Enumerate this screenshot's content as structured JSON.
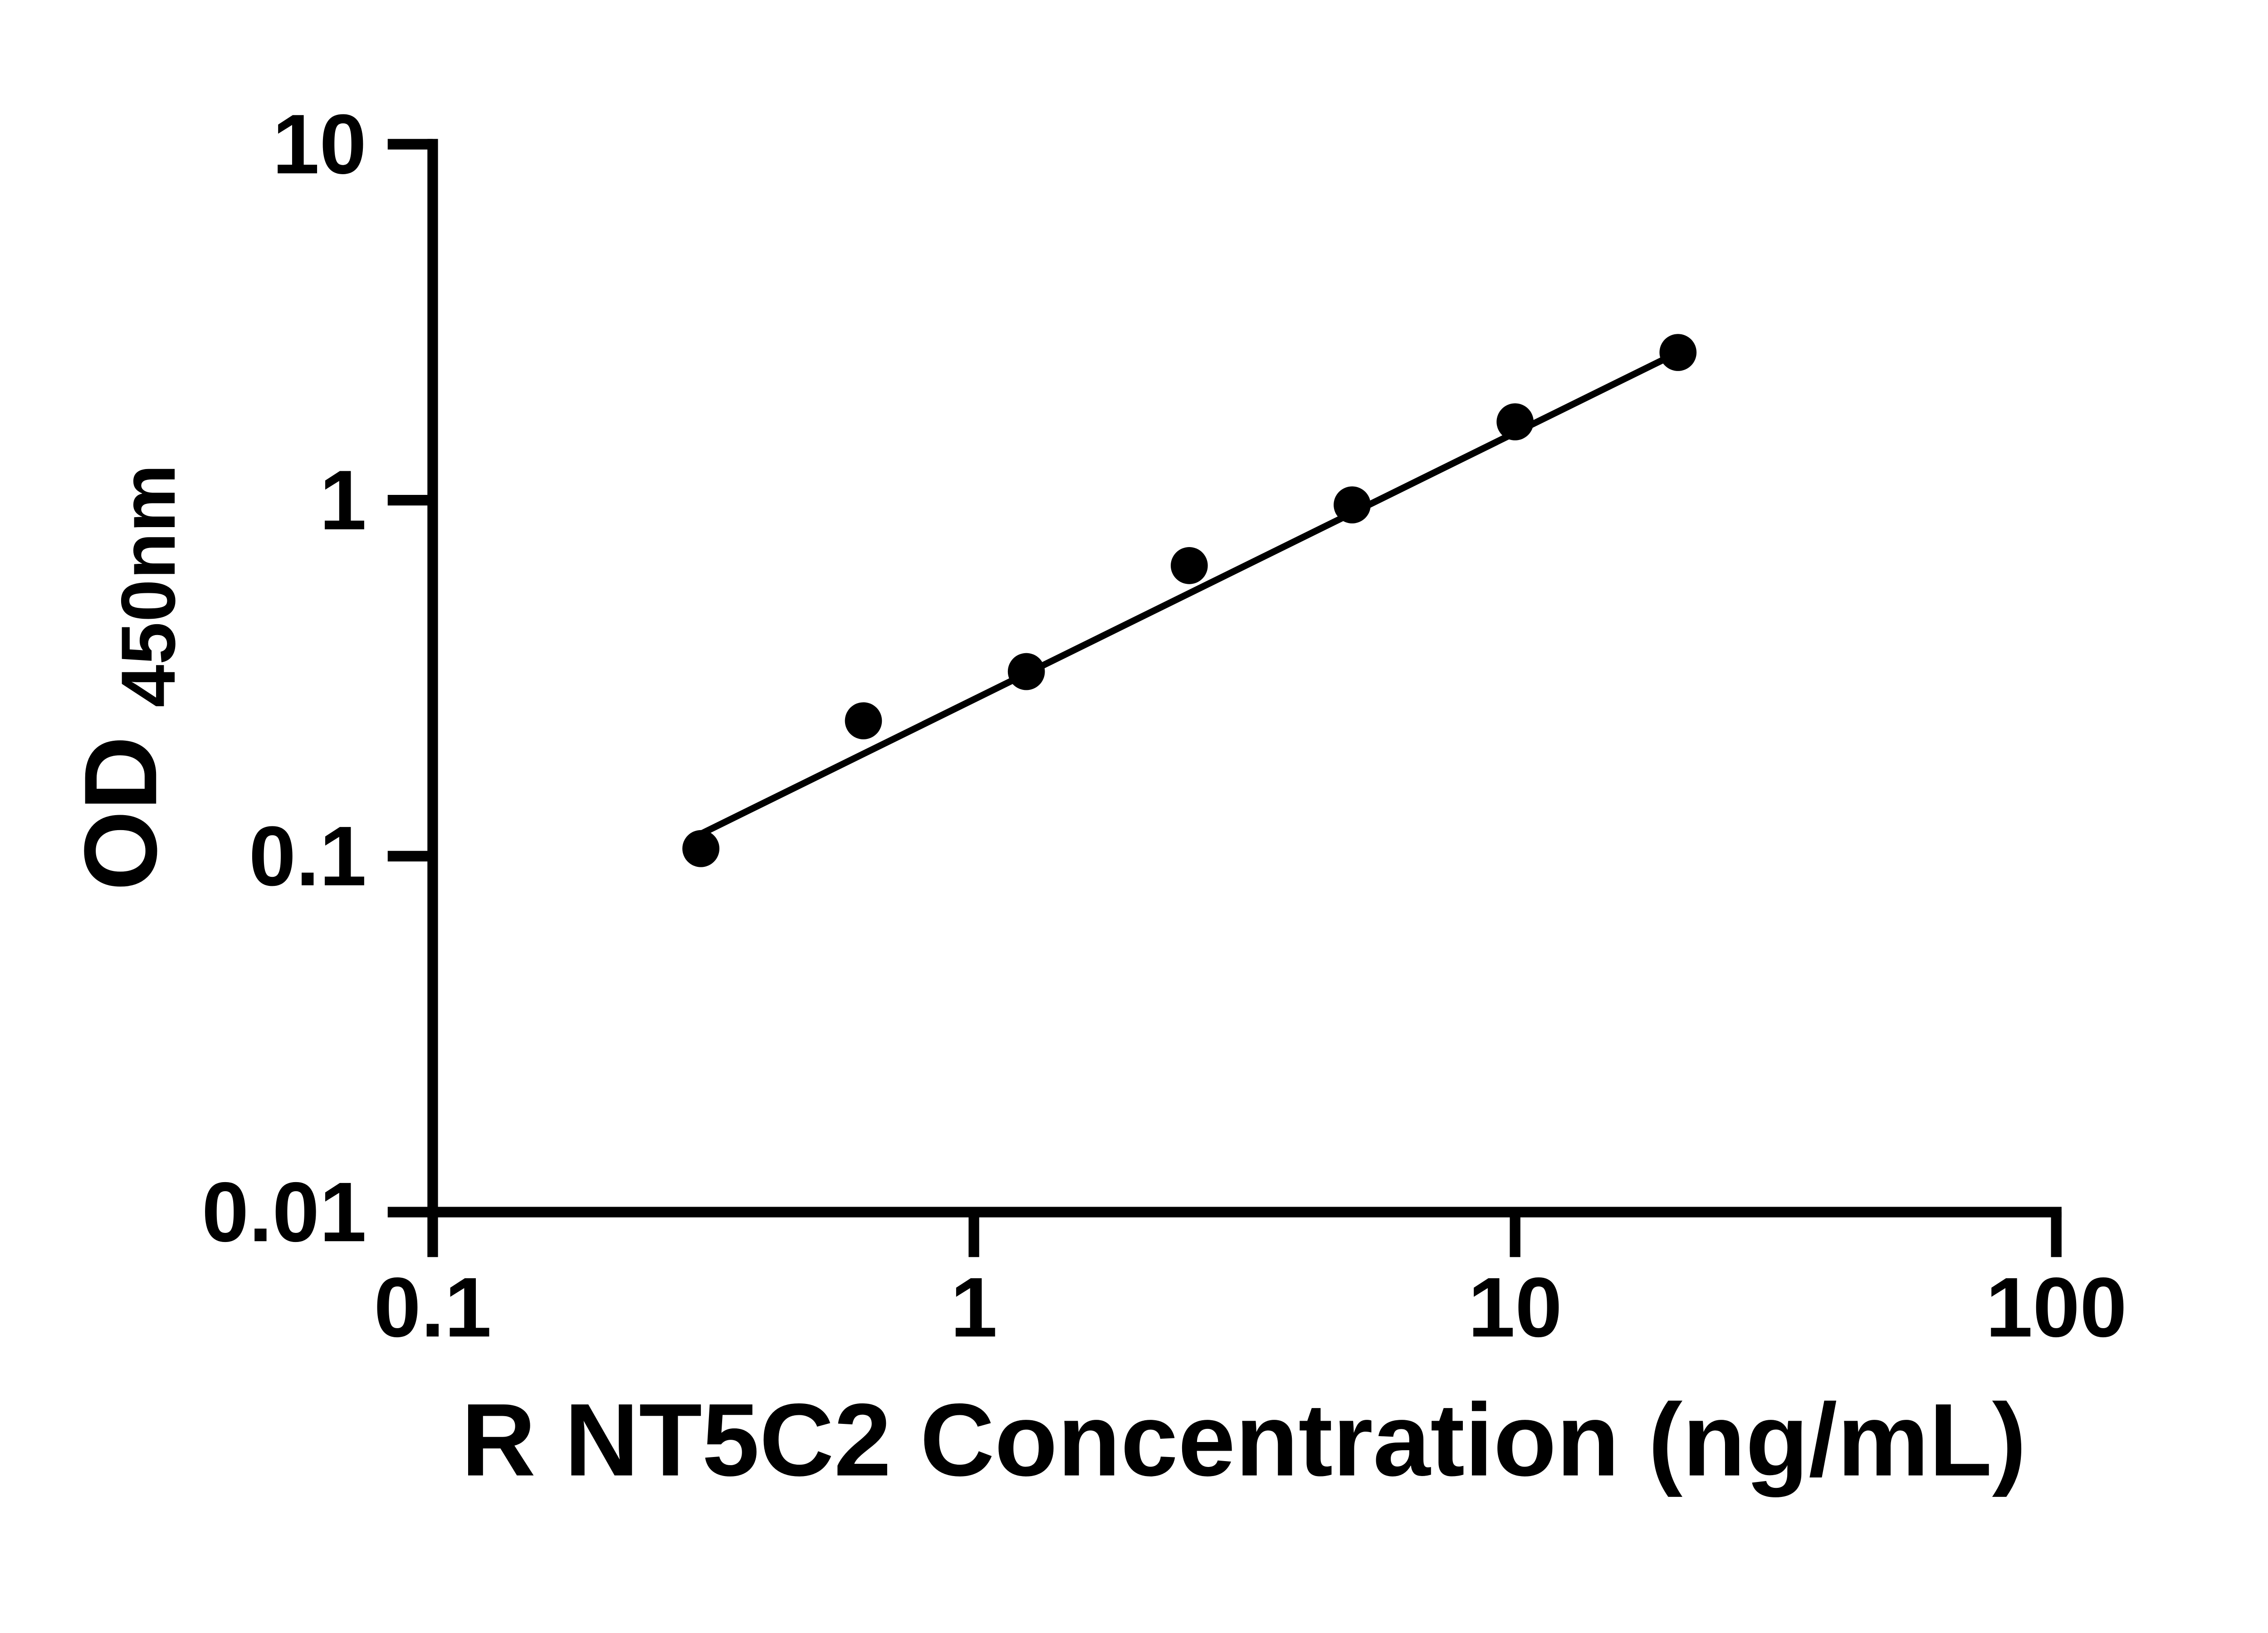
{
  "page": {
    "background_color": "#ffffff"
  },
  "chart_data": {
    "type": "scatter",
    "title": "",
    "xlabel": "R NT5C2 Concentration (ng/mL)",
    "ylabel": "OD450nm",
    "ylabel_main": "OD",
    "ylabel_sub": "450nm",
    "x_scale": "log",
    "y_scale": "log",
    "xlim": [
      0.1,
      100
    ],
    "ylim": [
      0.01,
      10
    ],
    "x_ticks": [
      0.1,
      1,
      10,
      100
    ],
    "x_tick_labels": [
      "0.1",
      "1",
      "10",
      "100"
    ],
    "y_ticks": [
      0.01,
      0.1,
      1,
      10
    ],
    "y_tick_labels": [
      "0.01",
      "0.1",
      "1",
      "10"
    ],
    "grid": false,
    "legend": "none",
    "marker_color": "#000000",
    "line_color": "#000000",
    "series": [
      {
        "name": "standard-curve-points",
        "type": "scatter",
        "x": [
          0.313,
          0.625,
          1.25,
          2.5,
          5,
          10,
          20
        ],
        "y": [
          0.105,
          0.24,
          0.33,
          0.655,
          0.97,
          1.66,
          2.6
        ]
      },
      {
        "name": "fit-line",
        "type": "line",
        "x": [
          0.315,
          20
        ],
        "y": [
          0.116,
          2.6
        ]
      }
    ]
  }
}
